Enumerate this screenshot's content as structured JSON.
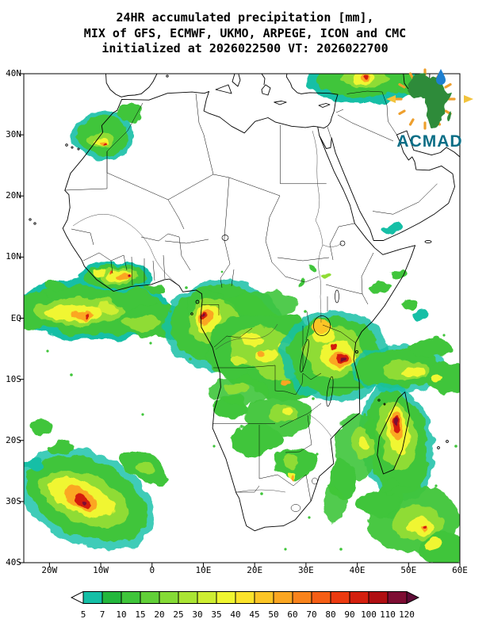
{
  "title": {
    "line1": "24HR accumulated precipitation [mm],",
    "line2": "MIX of GFS, ECMWF, UKMO, ARPEGE, ICON and CMC",
    "line3": "initialized at 2026022500 VT: 2026022700"
  },
  "axes": {
    "y_labels": [
      "40N",
      "30N",
      "20N",
      "10N",
      "EQ",
      "10S",
      "20S",
      "30S",
      "40S"
    ],
    "x_labels": [
      "20W",
      "10W",
      "0",
      "10E",
      "20E",
      "30E",
      "40E",
      "50E",
      "60E"
    ]
  },
  "colorbar": {
    "tick_labels": [
      "5",
      "7",
      "10",
      "15",
      "20",
      "25",
      "30",
      "35",
      "40",
      "45",
      "50",
      "60",
      "70",
      "80",
      "90",
      "100",
      "110",
      "120"
    ],
    "cell_colors": [
      "#14BFA6",
      "#23B73C",
      "#3FC53A",
      "#61D038",
      "#85DB36",
      "#AAE534",
      "#CEEE32",
      "#F0F630",
      "#FCE32B",
      "#FCC526",
      "#FBA621",
      "#F9831B",
      "#F55E15",
      "#EC3A10",
      "#D41F0E",
      "#B00F12",
      "#7E0D33"
    ],
    "left_arrow_color": "#FFFFFF",
    "right_arrow_color": "#5E0B36"
  },
  "logo": {
    "text": "ACMAD",
    "text_color": "#0A6E86",
    "africa_color": "#2E8B3A",
    "rays_color": "#EE9F2D",
    "drop_color": "#1D7FD0",
    "arrow_color": "#F2C33C"
  }
}
